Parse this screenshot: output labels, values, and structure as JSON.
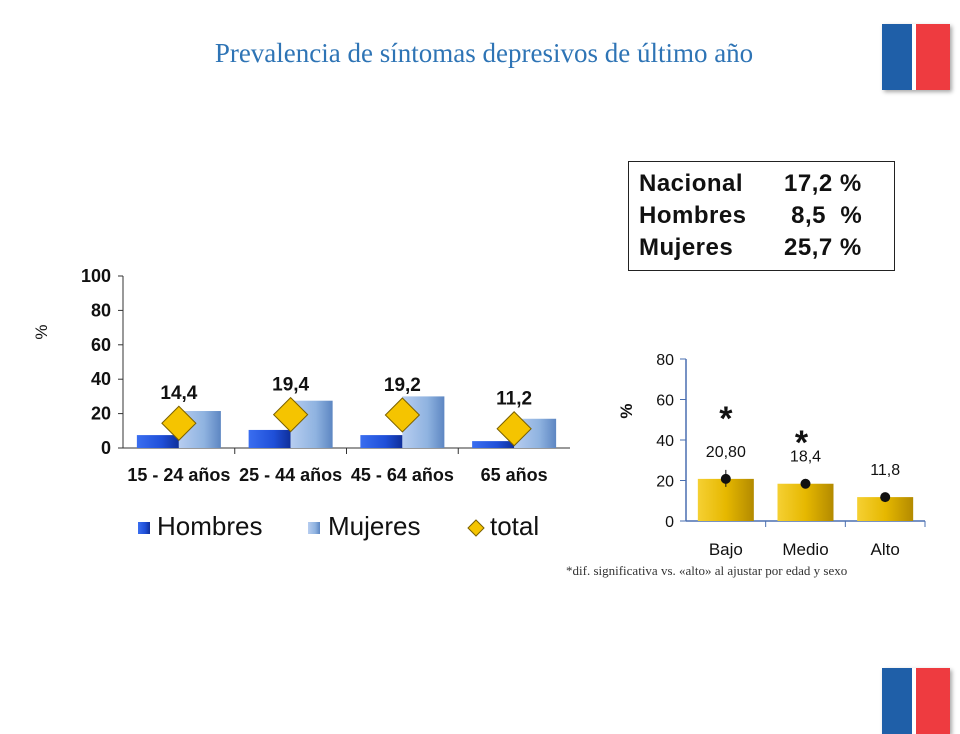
{
  "page": {
    "title": "Prevalencia de síntomas depresivos de último año",
    "footnote": "*dif. significativa  vs. «alto»   al ajustar por edad y sexo",
    "flag_colors": {
      "blue": "#1f5fa8",
      "red": "#ee3b40"
    }
  },
  "summary_box": {
    "rows": [
      {
        "label": "Nacional",
        "value": "17,2  %"
      },
      {
        "label": "Hombres",
        "value": " 8,5  %"
      },
      {
        "label": "Mujeres",
        "value": "25,7  %"
      }
    ]
  },
  "chart_data": [
    {
      "type": "bar",
      "categories": [
        "15 - 24 años",
        "25 - 44 años",
        "45 - 64 años",
        "65 años"
      ],
      "series": [
        {
          "name": "Hombres",
          "values": [
            7.5,
            10.5,
            7.5,
            4
          ],
          "color": "#1f4fd8"
        },
        {
          "name": "Mujeres",
          "values": [
            21.5,
            27.5,
            30,
            17
          ],
          "color": "#8fb3e0"
        },
        {
          "name": "total",
          "values": [
            14.4,
            19.4,
            19.2,
            11.2
          ],
          "color": "#f5c400",
          "marker": "diamond",
          "labels": [
            "14,4",
            "19,4",
            "19,2",
            "11,2"
          ]
        }
      ],
      "ylabel": "%",
      "ylim": [
        0,
        100
      ],
      "yticks": [
        "0",
        "20",
        "40",
        "60",
        "80",
        "100"
      ],
      "legend": "bottom"
    },
    {
      "type": "bar",
      "categories": [
        "Bajo",
        "Medio",
        "Alto"
      ],
      "values": [
        20.8,
        18.4,
        11.8
      ],
      "labels": [
        "20,80",
        "18,4",
        "11,8"
      ],
      "significance": [
        "*",
        "*",
        ""
      ],
      "color": "#e6b800",
      "ylabel": "%",
      "ylim": [
        0,
        80
      ],
      "yticks": [
        "0",
        "20",
        "40",
        "60",
        "80"
      ]
    }
  ]
}
